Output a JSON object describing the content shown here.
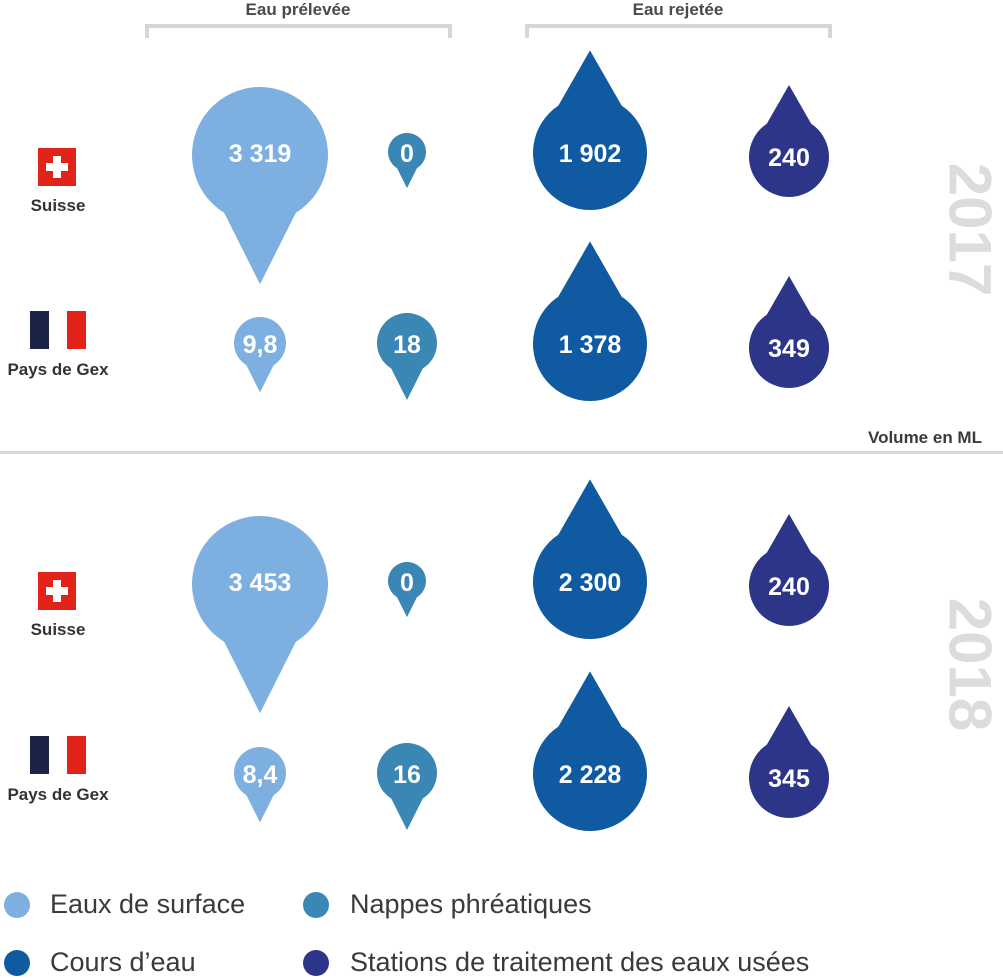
{
  "headers": {
    "withdrawn": "Eau prélevée",
    "discharged": "Eau rejetée"
  },
  "unit_label": "Volume en ML",
  "countries": {
    "ch": "Suisse",
    "fr": "Pays de Gex"
  },
  "colors": {
    "surface": "#7db0e0",
    "groundwater": "#3a86b5",
    "river": "#0f5aa0",
    "stations": "#2d3589",
    "swiss_red": "#e2231a",
    "fr_blue": "#1b2346",
    "fr_red": "#e2231a"
  },
  "legend": [
    {
      "label": "Eaux de surface",
      "color": "#7db0e0"
    },
    {
      "label": "Nappes phréatiques",
      "color": "#3a86b5"
    },
    {
      "label": "Cours d’eau",
      "color": "#0f5aa0"
    },
    {
      "label": "Stations de traitement des eaux usées",
      "color": "#2d3589"
    }
  ],
  "chart_data": {
    "type": "table",
    "unit": "Volume en ML",
    "group_headers": [
      "Eau prélevée",
      "Eau rejetée"
    ],
    "categories": [
      "Eaux de surface",
      "Nappes phréatiques",
      "Cours d’eau",
      "Stations de traitement des eaux usées"
    ],
    "years": [
      {
        "year": "2017",
        "rows": [
          {
            "country": "Suisse",
            "values": [
              3319,
              0,
              1902,
              240
            ],
            "labels": [
              "3 319",
              "0",
              "1 902",
              "240"
            ]
          },
          {
            "country": "Pays de Gex",
            "values": [
              9.8,
              18,
              1378,
              349
            ],
            "labels": [
              "9,8",
              "18",
              "1 378",
              "349"
            ]
          }
        ]
      },
      {
        "year": "2018",
        "rows": [
          {
            "country": "Suisse",
            "values": [
              3453,
              0,
              2300,
              240
            ],
            "labels": [
              "3 453",
              "0",
              "2 300",
              "240"
            ]
          },
          {
            "country": "Pays de Gex",
            "values": [
              8.4,
              16,
              2228,
              345
            ],
            "labels": [
              "8,4",
              "16",
              "2 228",
              "345"
            ]
          }
        ]
      }
    ]
  }
}
